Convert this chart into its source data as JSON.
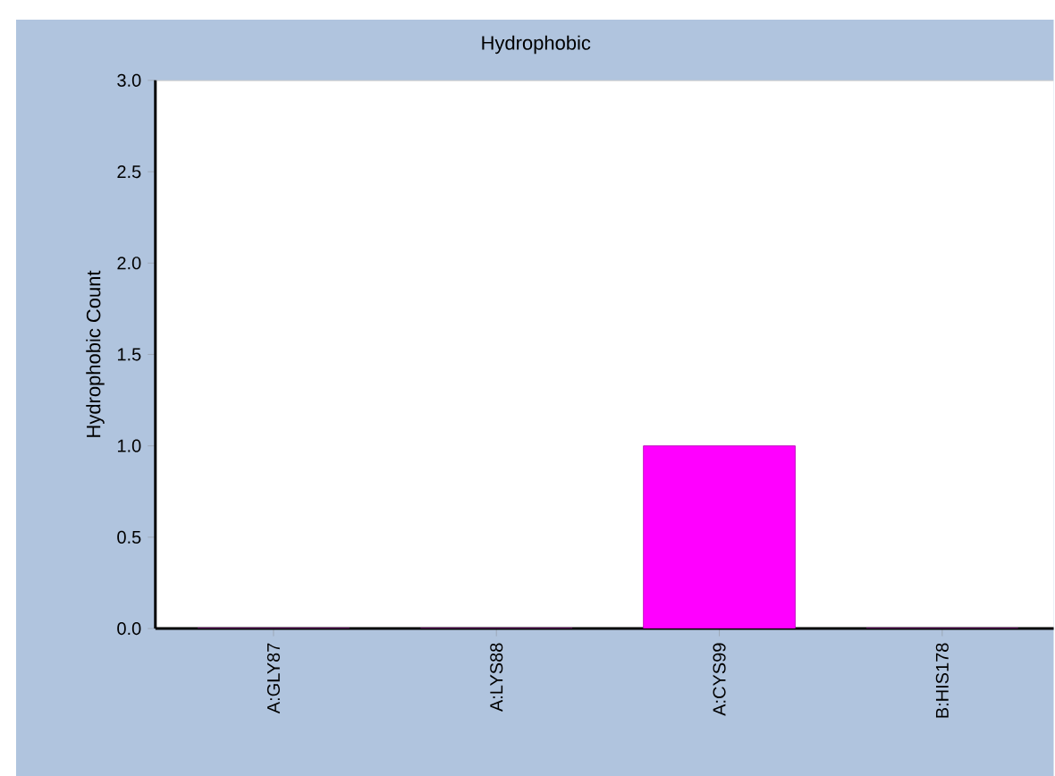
{
  "chart_data": {
    "type": "bar",
    "title": "Hydrophobic",
    "ylabel": "Hydrophobic Count",
    "categories": [
      "A:GLY87",
      "A:LYS88",
      "A:CYS99",
      "B:HIS178"
    ],
    "values": [
      0,
      0,
      1,
      0
    ],
    "color": "#ff00ff",
    "ylim": [
      0,
      3
    ],
    "yticks": [
      {
        "value": 0,
        "label": "0.0"
      },
      {
        "value": 0.5,
        "label": "0.5"
      },
      {
        "value": 1,
        "label": "1.0"
      },
      {
        "value": 1.5,
        "label": "1.5"
      },
      {
        "value": 2,
        "label": "2.0"
      },
      {
        "value": 2.5,
        "label": "2.5"
      },
      {
        "value": 3,
        "label": "3.0"
      }
    ]
  }
}
